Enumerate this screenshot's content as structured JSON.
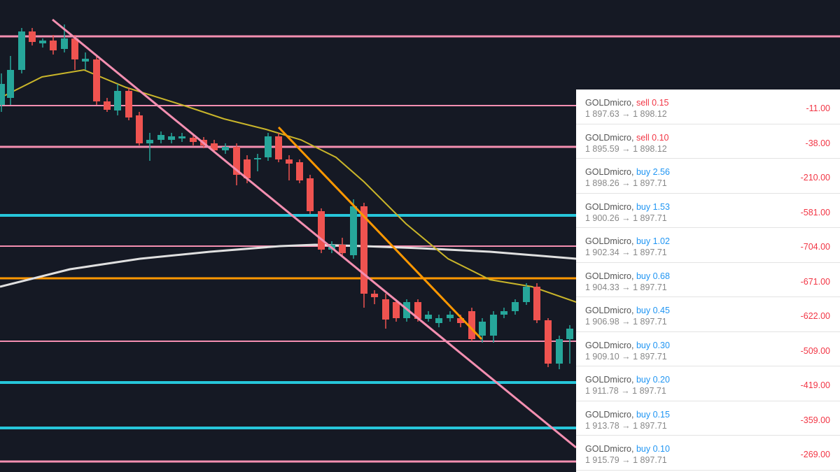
{
  "trades": [
    {
      "symbol": "GOLDmicro,",
      "order": "sell 0.15",
      "prices": "1 897.63 → 1 898.12",
      "profit": "-11.00"
    },
    {
      "symbol": "GOLDmicro,",
      "order": "sell 0.10",
      "prices": "1 895.59 → 1 898.12",
      "profit": "-38.00"
    },
    {
      "symbol": "GOLDmicro,",
      "order": "buy 2.56",
      "prices": "1 898.26 → 1 897.71",
      "profit": "-210.00"
    },
    {
      "symbol": "GOLDmicro,",
      "order": "buy 1.53",
      "prices": "1 900.26 → 1 897.71",
      "profit": "-581.00"
    },
    {
      "symbol": "GOLDmicro,",
      "order": "buy 1.02",
      "prices": "1 902.34 → 1 897.71",
      "profit": "-704.00"
    },
    {
      "symbol": "GOLDmicro,",
      "order": "buy 0.68",
      "prices": "1 904.33 → 1 897.71",
      "profit": "-671.00"
    },
    {
      "symbol": "GOLDmicro,",
      "order": "buy 0.45",
      "prices": "1 906.98 → 1 897.71",
      "profit": "-622.00"
    },
    {
      "symbol": "GOLDmicro,",
      "order": "buy 0.30",
      "prices": "1 909.10 → 1 897.71",
      "profit": "-509.00"
    },
    {
      "symbol": "GOLDmicro,",
      "order": "buy 0.20",
      "prices": "1 911.78 → 1 897.71",
      "profit": "-419.00"
    },
    {
      "symbol": "GOLDmicro,",
      "order": "buy 0.15",
      "prices": "1 913.78 → 1 897.71",
      "profit": "-359.00"
    },
    {
      "symbol": "GOLDmicro,",
      "order": "buy 0.10",
      "prices": "1 915.79 → 1 897.71",
      "profit": "-269.00"
    }
  ]
}
